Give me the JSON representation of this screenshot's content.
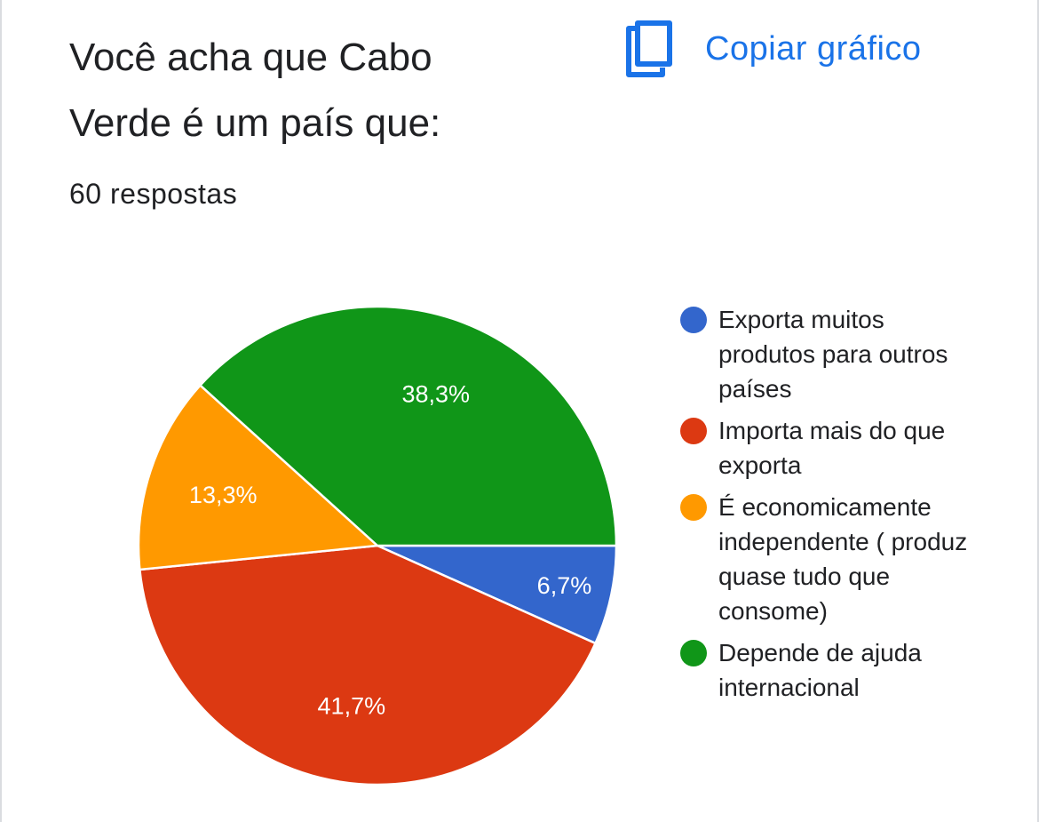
{
  "header": {
    "title": "Você acha que Cabo Verde é um país que:",
    "responses": "60 respostas",
    "copy_label": "Copiar gráfico"
  },
  "colors": {
    "accent": "#1a73e8"
  },
  "icons": {
    "copy": "copy-icon"
  },
  "chart_data": {
    "type": "pie",
    "title": "Você acha que Cabo Verde é um país que:",
    "total_responses": 60,
    "legend_position": "right",
    "slices": [
      {
        "label": "Exporta muitos produtos para outros países",
        "value": 6.7,
        "value_label": "6,7%",
        "color": "#3366cc"
      },
      {
        "label": "Importa mais do que exporta",
        "value": 41.7,
        "value_label": "41,7%",
        "color": "#dc3912"
      },
      {
        "label": "É economicamente independente ( produz quase tudo que consome)",
        "value": 13.3,
        "value_label": "13,3%",
        "color": "#ff9900"
      },
      {
        "label": "Depende de ajuda internacional",
        "value": 38.3,
        "value_label": "38,3%",
        "color": "#109618"
      }
    ]
  }
}
